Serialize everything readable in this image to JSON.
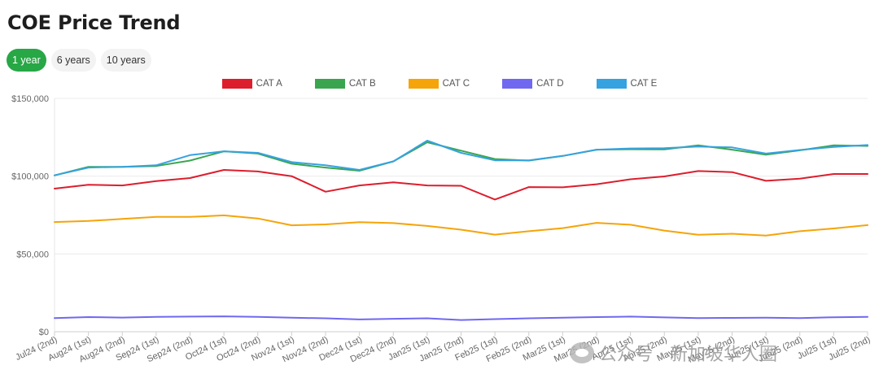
{
  "page": {
    "title": "COE Price Trend"
  },
  "ranges": [
    {
      "label": "1 year",
      "active": true
    },
    {
      "label": "6 years",
      "active": false
    },
    {
      "label": "10 years",
      "active": false
    }
  ],
  "watermark": "公众号 · 新加坡华人圈",
  "chart_data": {
    "type": "line",
    "title": "",
    "xlabel": "",
    "ylabel": "",
    "ylim": [
      0,
      150000
    ],
    "yticks": [
      0,
      50000,
      100000,
      150000
    ],
    "ytick_labels": [
      "$0",
      "$50,000",
      "$100,000",
      "$150,000"
    ],
    "grid": true,
    "legend_position": "top-center",
    "categories": [
      "Jul24 (2nd)",
      "Aug24 (1st)",
      "Aug24 (2nd)",
      "Sep24 (1st)",
      "Sep24 (2nd)",
      "Oct24 (1st)",
      "Oct24 (2nd)",
      "Nov24 (1st)",
      "Nov24 (2nd)",
      "Dec24 (1st)",
      "Dec24 (2nd)",
      "Jan25 (1st)",
      "Jan25 (2nd)",
      "Feb25 (1st)",
      "Feb25 (2nd)",
      "Mar25 (1st)",
      "Mar25 (2nd)",
      "Apr25 (1st)",
      "Apr25 (2nd)",
      "May25 (1st)",
      "May25 (2nd)",
      "Jun25 (1st)",
      "Jun25 (2nd)",
      "Jul25 (1st)",
      "Jul25 (2nd)"
    ],
    "series": [
      {
        "name": "CAT A",
        "color": "#dc1e2d",
        "values": [
          92000,
          94500,
          94000,
          96800,
          98800,
          104000,
          103000,
          100000,
          90000,
          94000,
          96000,
          94000,
          93800,
          85000,
          93000,
          92800,
          94800,
          98000,
          99800,
          103300,
          102600,
          97000,
          98400,
          101400,
          101400
        ]
      },
      {
        "name": "CAT B",
        "color": "#39a64f",
        "values": [
          100500,
          106000,
          106000,
          106500,
          110000,
          116000,
          114500,
          108000,
          105500,
          103500,
          109500,
          121800,
          116400,
          111000,
          110000,
          113000,
          117000,
          117300,
          117200,
          119800,
          117000,
          113800,
          116600,
          119800,
          119400
        ]
      },
      {
        "name": "CAT C",
        "color": "#f5a40a",
        "values": [
          70500,
          71200,
          72500,
          73800,
          73800,
          74800,
          72800,
          68400,
          69000,
          70400,
          69800,
          68000,
          65600,
          62400,
          64600,
          66600,
          70000,
          68800,
          65000,
          62300,
          63000,
          61800,
          64600,
          66400,
          68500
        ]
      },
      {
        "name": "CAT D",
        "color": "#7068f0",
        "values": [
          8800,
          9400,
          9100,
          9500,
          9700,
          9900,
          9500,
          9000,
          8600,
          7900,
          8300,
          8600,
          7500,
          8100,
          8600,
          9000,
          9400,
          9700,
          9200,
          8800,
          8900,
          9000,
          8800,
          9300,
          9500
        ]
      },
      {
        "name": "CAT E",
        "color": "#36a2e0",
        "values": [
          100500,
          105500,
          106000,
          107000,
          113500,
          116000,
          115000,
          109000,
          107000,
          104000,
          109500,
          122800,
          115000,
          110200,
          110200,
          113000,
          117000,
          117800,
          118000,
          119000,
          118500,
          114500,
          116800,
          118800,
          120000
        ]
      }
    ]
  }
}
